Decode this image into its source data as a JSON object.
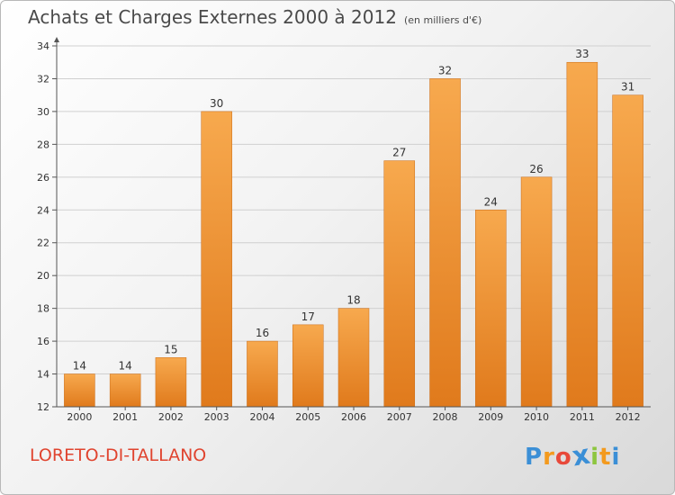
{
  "title": "Achats et Charges Externes 2000 à 2012",
  "unit_note": "(en milliers d'€)",
  "place_name": "LORETO-DI-TALLANO",
  "logo": {
    "letters": [
      "P",
      "r",
      "o",
      "x",
      "i",
      "t",
      "i"
    ],
    "colors": [
      "#3b8fd6",
      "#f39a1e",
      "#e8493a",
      "#3b8fd6",
      "#8dc63f",
      "#f39a1e",
      "#3b8fd6"
    ]
  },
  "colors": {
    "bar_light": "#f7a94e",
    "bar_dark": "#e07a1c",
    "axis": "#555555",
    "grid": "#d0d0d0",
    "text": "#333333"
  },
  "chart_data": {
    "type": "bar",
    "categories": [
      "2000",
      "2001",
      "2002",
      "2003",
      "2004",
      "2005",
      "2006",
      "2007",
      "2008",
      "2009",
      "2010",
      "2011",
      "2012"
    ],
    "values": [
      14,
      14,
      15,
      30,
      16,
      17,
      18,
      27,
      32,
      24,
      26,
      33,
      31
    ],
    "value_labels": [
      "14",
      "14",
      "15",
      "30",
      "16",
      "17",
      "18",
      "27",
      "32",
      "24",
      "26",
      "33",
      "31"
    ],
    "title": "Achats et Charges Externes 2000 à 2012",
    "xlabel": "",
    "ylabel": "",
    "ylim": [
      12,
      34
    ],
    "yticks": [
      12,
      14,
      16,
      18,
      20,
      22,
      24,
      26,
      28,
      30,
      32,
      34
    ],
    "ytick_labels": [
      "12",
      "14",
      "16",
      "18",
      "20",
      "22",
      "24",
      "26",
      "28",
      "30",
      "32",
      "34"
    ],
    "grid": true,
    "legend": "none"
  }
}
